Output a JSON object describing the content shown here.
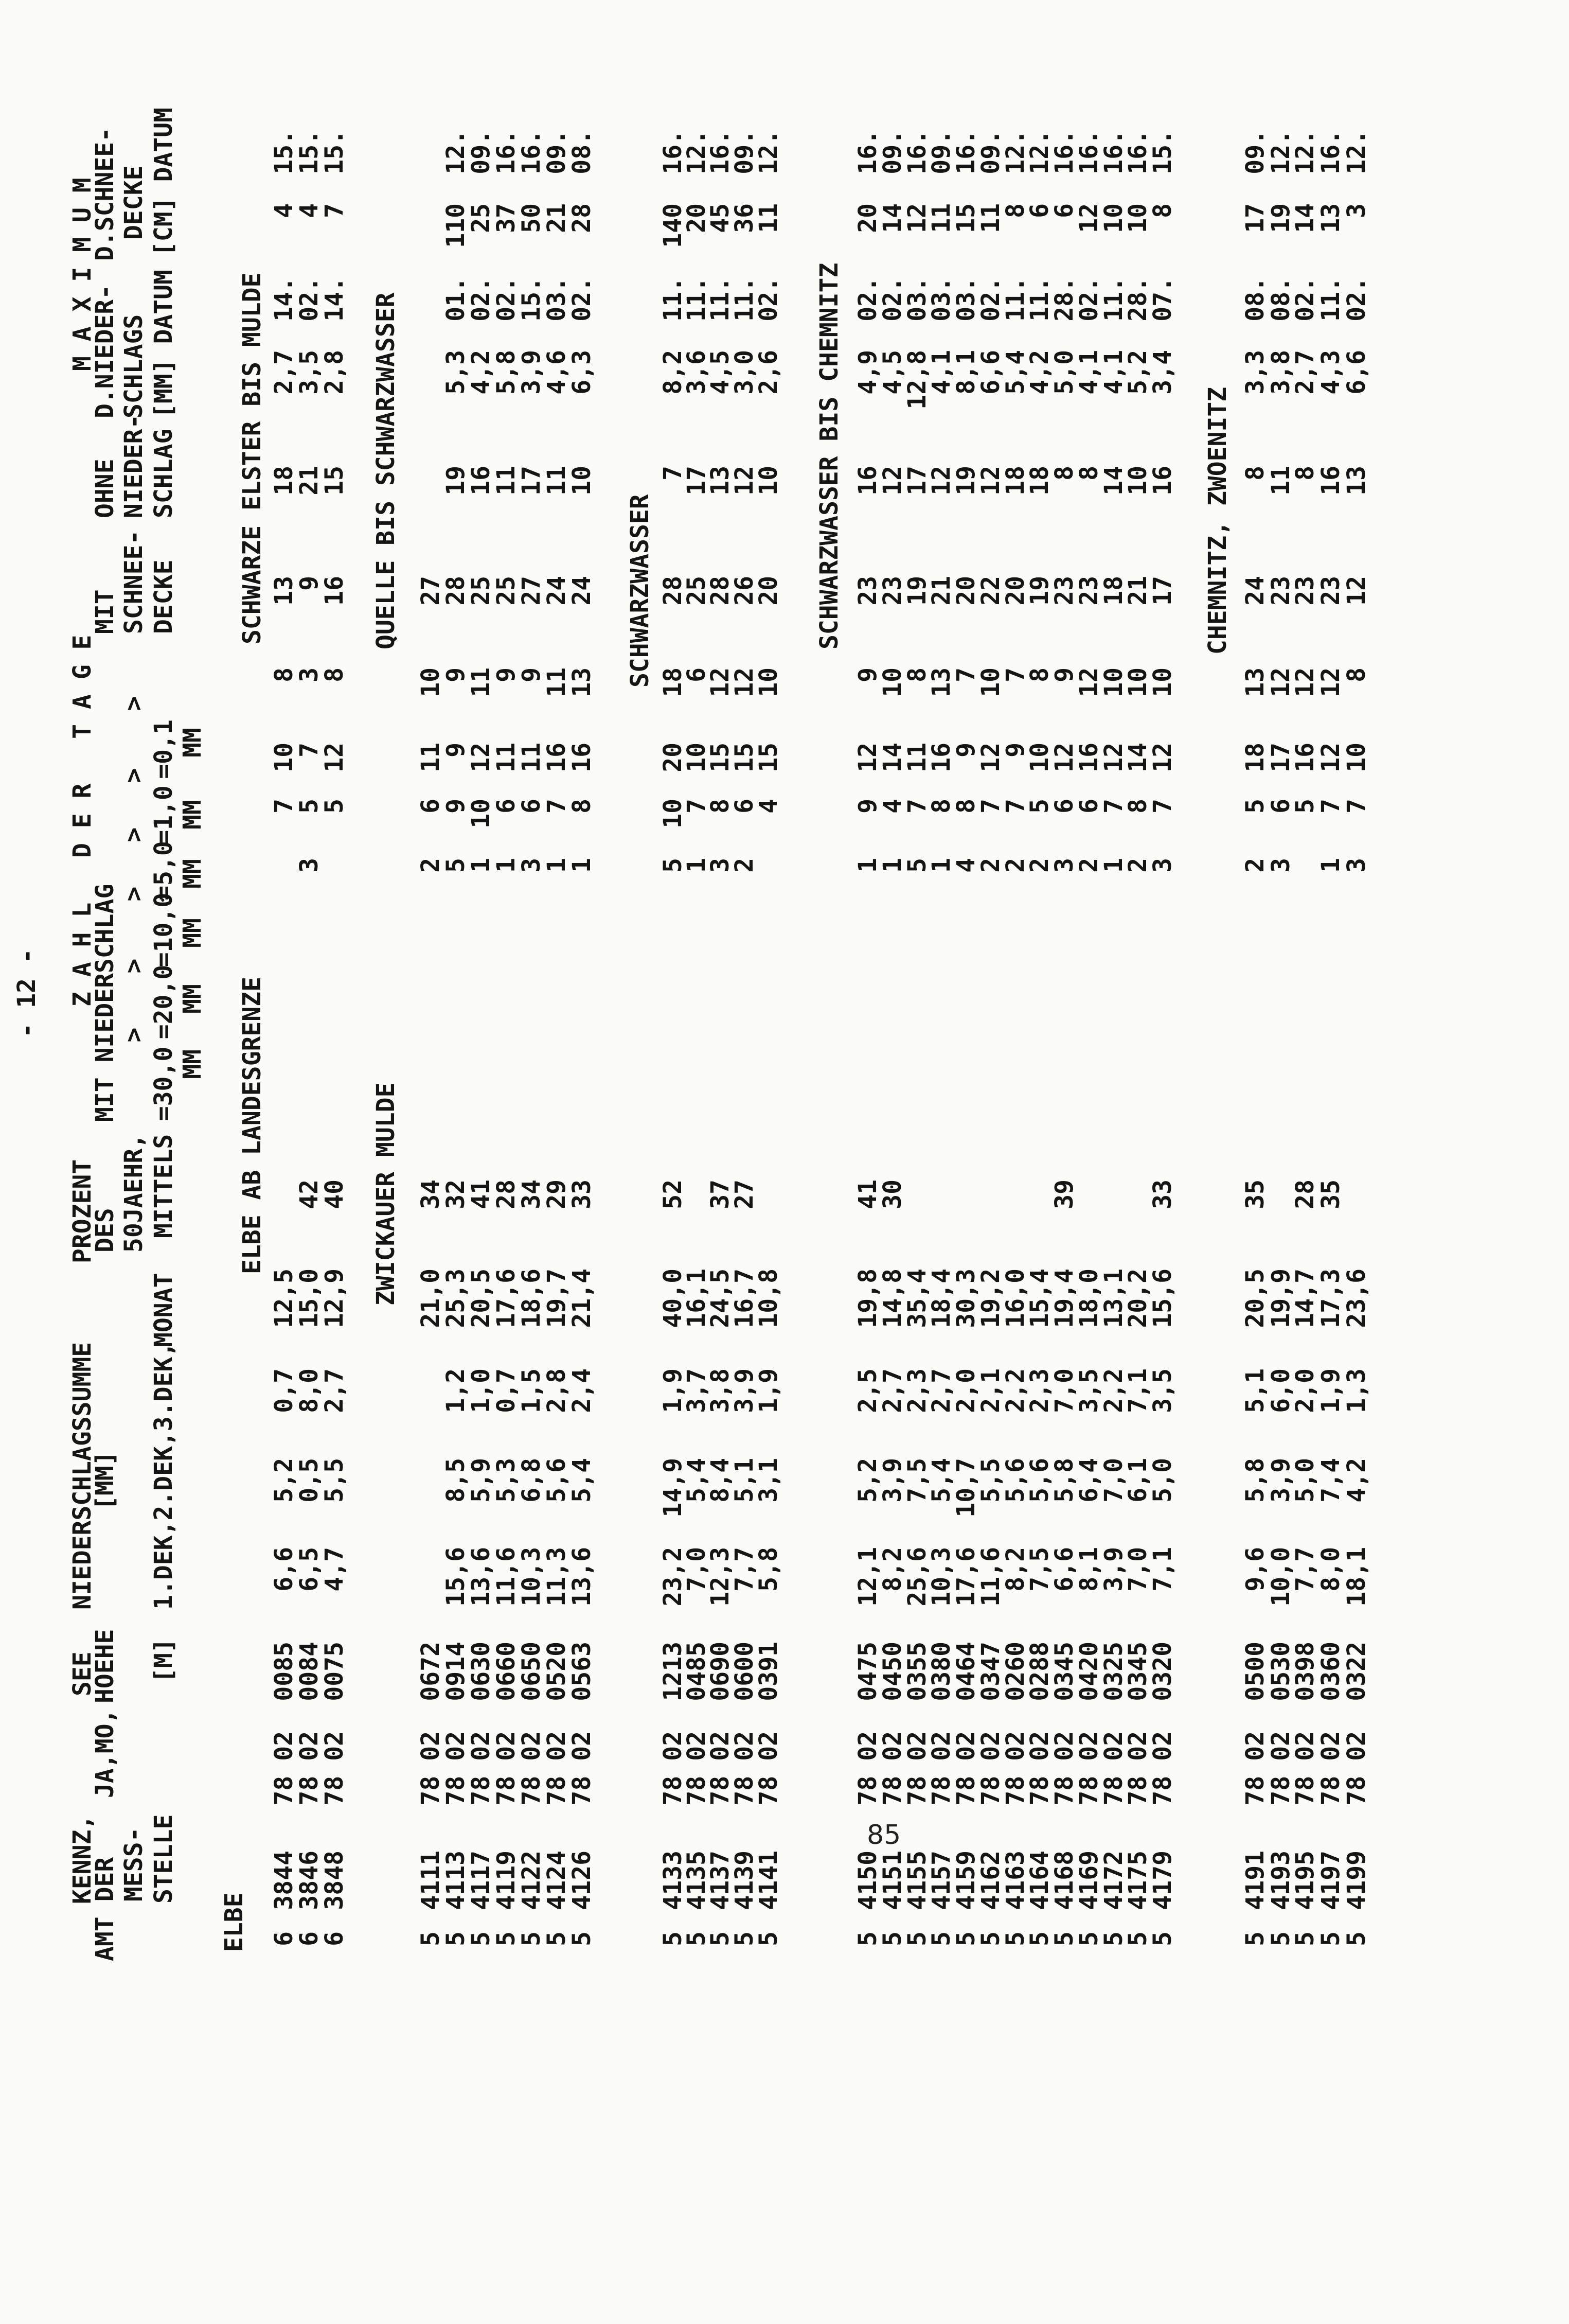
{
  "page_marker": "- 12 -",
  "page_number": "85",
  "header": {
    "kennz": "KENNZ,",
    "amt_der": "AMT DER",
    "mess": "MESS-",
    "stelle": "STELLE",
    "jamo": "JA,MO,",
    "see": "SEE",
    "hoehe": "HOEHE",
    "hoehe_unit": "[M]",
    "ns_title": "NIEDERSCHLAGSSUMME",
    "ns_unit": "[MM]",
    "dekaden": "1.DEK,2.DEK,3.DEK,",
    "monat": "MONAT",
    "prozent": "PROZENT",
    "des": "DES",
    "jaehr": "50JAEHR,",
    "mittels": "MITTELS",
    "zahl_der_tage": "Z A H L   D E R   T A G E",
    "mit_niederschlag": "MIT NIEDERSCHLAG",
    "thresholds": [
      {
        "sym": ">",
        "val": "=30,0",
        "unit": "MM"
      },
      {
        "sym": ">",
        "val": "=20,0",
        "unit": "MM"
      },
      {
        "sym": ">",
        "val": "=10,0",
        "unit": "MM"
      },
      {
        "sym": ">",
        "val": "=5,0",
        "unit": "MM"
      },
      {
        "sym": ">",
        "val": "=1,0",
        "unit": "MM"
      },
      {
        "sym": ">",
        "val": "=0,1",
        "unit": "MM"
      }
    ],
    "mit": "MIT",
    "schnee": "SCHNEE-",
    "decke": "DECKE",
    "ohne": "OHNE",
    "nieder": "NIEDER-",
    "schlag": "SCHLAG",
    "maximum": "M A X I M U M",
    "d_nieder": "D.NIEDER-",
    "schlags": "SCHLAGS",
    "mm_datum": "[MM] DATUM",
    "d_schnee": "D.SCHNEE-",
    "decke2": "DECKE",
    "cm_datum": "[CM] DATUM"
  },
  "groups": [
    {
      "title": "ELBE",
      "heading_left": "ELBE AB LANDESGRENZE",
      "heading_right": "SCHWARZE ELSTER BIS MULDE",
      "rows": [
        [
          "6",
          "3844",
          "78 02",
          "0085",
          "6,6",
          "5,2",
          "0,7",
          "12,5",
          "",
          "",
          "7",
          "10",
          "8",
          "13",
          "18",
          "2,7",
          "14.",
          "4",
          "15."
        ],
        [
          "6",
          "3846",
          "78 02",
          "0084",
          "6,5",
          "0,5",
          "8,0",
          "15,0",
          "42",
          "3",
          "5",
          "7",
          "3",
          "9",
          "21",
          "3,5",
          "02.",
          "4",
          "15."
        ],
        [
          "6",
          "3848",
          "78 02",
          "0075",
          "4,7",
          "5,5",
          "2,7",
          "12,9",
          "40",
          "",
          "5",
          "12",
          "8",
          "16",
          "15",
          "2,8",
          "14.",
          "7",
          "15."
        ]
      ]
    },
    {
      "title": "",
      "heading_left": "ZWICKAUER MULDE",
      "heading_right": "QUELLE BIS SCHWARZWASSER",
      "rows": [
        [
          "5",
          "4111",
          "78 02",
          "0672",
          "",
          "",
          "",
          "21,0",
          "34",
          "2",
          "6",
          "11",
          "10",
          "27",
          "",
          "",
          "",
          "",
          ""
        ],
        [
          "5",
          "4113",
          "78 02",
          "0914",
          "15,6",
          "8,5",
          "1,2",
          "25,3",
          "32",
          "5",
          "9",
          "9",
          "9",
          "28",
          "19",
          "5,3",
          "01.",
          "110",
          "12."
        ],
        [
          "5",
          "4117",
          "78 02",
          "0630",
          "13,6",
          "5,9",
          "1,0",
          "20,5",
          "41",
          "1",
          "10",
          "12",
          "11",
          "25",
          "16",
          "4,2",
          "02.",
          "25",
          "09."
        ],
        [
          "5",
          "4119",
          "78 02",
          "0660",
          "11,6",
          "5,3",
          "0,7",
          "17,6",
          "28",
          "1",
          "6",
          "11",
          "9",
          "25",
          "11",
          "5,8",
          "02.",
          "37",
          "16."
        ],
        [
          "5",
          "4122",
          "78 02",
          "0650",
          "10,3",
          "6,8",
          "1,5",
          "18,6",
          "34",
          "3",
          "6",
          "11",
          "9",
          "27",
          "17",
          "3,9",
          "15.",
          "50",
          "16."
        ],
        [
          "5",
          "4124",
          "78 02",
          "0520",
          "11,3",
          "5,6",
          "2,8",
          "19,7",
          "29",
          "1",
          "7",
          "16",
          "11",
          "24",
          "11",
          "4,6",
          "03.",
          "21",
          "09."
        ],
        [
          "5",
          "4126",
          "78 02",
          "0563",
          "13,6",
          "5,4",
          "2,4",
          "21,4",
          "33",
          "1",
          "8",
          "16",
          "13",
          "24",
          "10",
          "6,3",
          "02.",
          "28",
          "08."
        ]
      ]
    },
    {
      "title": "",
      "heading_left": "",
      "heading_right": "SCHWARZWASSER",
      "rows": [
        [
          "5",
          "4133",
          "78 02",
          "1213",
          "23,2",
          "14,9",
          "1,9",
          "40,0",
          "52",
          "5",
          "10",
          "20",
          "18",
          "28",
          "7",
          "8,2",
          "11.",
          "140",
          "16."
        ],
        [
          "5",
          "4135",
          "78 02",
          "0485",
          "7,0",
          "5,4",
          "3,7",
          "16,1",
          "",
          "1",
          "7",
          "10",
          "6",
          "25",
          "17",
          "3,6",
          "11.",
          "20",
          "12."
        ],
        [
          "5",
          "4137",
          "78 02",
          "0690",
          "12,3",
          "8,4",
          "3,8",
          "24,5",
          "37",
          "3",
          "8",
          "15",
          "12",
          "28",
          "13",
          "4,5",
          "11.",
          "45",
          "16."
        ],
        [
          "5",
          "4139",
          "78 02",
          "0600",
          "7,7",
          "5,1",
          "3,9",
          "16,7",
          "27",
          "2",
          "6",
          "15",
          "12",
          "26",
          "12",
          "3,0",
          "11.",
          "36",
          "09."
        ],
        [
          "5",
          "4141",
          "78 02",
          "0391",
          "5,8",
          "3,1",
          "1,9",
          "10,8",
          "",
          "",
          "4",
          "15",
          "10",
          "20",
          "10",
          "2,6",
          "02.",
          "11",
          "12."
        ]
      ]
    },
    {
      "title": "",
      "heading_left": "",
      "heading_right": "SCHWARZWASSER BIS CHEMNITZ",
      "rows": [
        [
          "5",
          "4150",
          "78 02",
          "0475",
          "12,1",
          "5,2",
          "2,5",
          "19,8",
          "41",
          "1",
          "9",
          "12",
          "9",
          "23",
          "16",
          "4,9",
          "02.",
          "20",
          "16."
        ],
        [
          "5",
          "4151",
          "78 02",
          "0450",
          "8,2",
          "3,9",
          "2,7",
          "14,8",
          "30",
          "1",
          "4",
          "14",
          "10",
          "23",
          "12",
          "4,5",
          "02.",
          "14",
          "09."
        ],
        [
          "5",
          "4155",
          "78 02",
          "0355",
          "25,6",
          "7,5",
          "2,3",
          "35,4",
          "",
          "5",
          "7",
          "11",
          "8",
          "19",
          "17",
          "12,8",
          "03.",
          "12",
          "16."
        ],
        [
          "5",
          "4157",
          "78 02",
          "0380",
          "10,3",
          "5,4",
          "2,7",
          "18,4",
          "",
          "1",
          "8",
          "16",
          "13",
          "21",
          "12",
          "4,1",
          "03.",
          "11",
          "09."
        ],
        [
          "5",
          "4159",
          "78 02",
          "0464",
          "17,6",
          "10,7",
          "2,0",
          "30,3",
          "",
          "4",
          "8",
          "9",
          "7",
          "20",
          "19",
          "8,1",
          "03.",
          "15",
          "16."
        ],
        [
          "5",
          "4162",
          "78 02",
          "0347",
          "11,6",
          "5,5",
          "2,1",
          "19,2",
          "",
          "2",
          "7",
          "12",
          "10",
          "22",
          "12",
          "6,6",
          "02.",
          "11",
          "09."
        ],
        [
          "5",
          "4163",
          "78 02",
          "0260",
          "8,2",
          "5,6",
          "2,2",
          "16,0",
          "",
          "2",
          "7",
          "9",
          "7",
          "20",
          "18",
          "5,4",
          "11.",
          "8",
          "12."
        ],
        [
          "5",
          "4164",
          "78 02",
          "0288",
          "7,5",
          "5,6",
          "2,3",
          "15,4",
          "",
          "2",
          "5",
          "10",
          "8",
          "19",
          "18",
          "4,2",
          "11.",
          "6",
          "12."
        ],
        [
          "5",
          "4168",
          "78 02",
          "0345",
          "6,6",
          "5,8",
          "7,0",
          "19,4",
          "39",
          "3",
          "6",
          "12",
          "9",
          "23",
          "8",
          "5,0",
          "28.",
          "6",
          "16."
        ],
        [
          "5",
          "4169",
          "78 02",
          "0420",
          "8,1",
          "6,4",
          "3,5",
          "18,0",
          "",
          "2",
          "6",
          "16",
          "12",
          "23",
          "8",
          "4,1",
          "02.",
          "12",
          "16."
        ],
        [
          "5",
          "4172",
          "78 02",
          "0325",
          "3,9",
          "7,0",
          "2,2",
          "13,1",
          "",
          "1",
          "7",
          "12",
          "10",
          "18",
          "14",
          "4,1",
          "11.",
          "10",
          "16."
        ],
        [
          "5",
          "4175",
          "78 02",
          "0345",
          "7,0",
          "6,1",
          "7,1",
          "20,2",
          "",
          "2",
          "8",
          "14",
          "10",
          "21",
          "10",
          "5,2",
          "28.",
          "10",
          "16."
        ],
        [
          "5",
          "4179",
          "78 02",
          "0320",
          "7,1",
          "5,0",
          "3,5",
          "15,6",
          "33",
          "3",
          "7",
          "12",
          "10",
          "17",
          "16",
          "3,4",
          "07.",
          "8",
          "15."
        ]
      ]
    },
    {
      "title": "",
      "heading_left": "",
      "heading_right": "CHEMNITZ, ZWOENITZ",
      "rows": [
        [
          "5",
          "4191",
          "78 02",
          "0500",
          "9,6",
          "5,8",
          "5,1",
          "20,5",
          "35",
          "2",
          "5",
          "18",
          "13",
          "24",
          "8",
          "3,3",
          "08.",
          "17",
          "09."
        ],
        [
          "5",
          "4193",
          "78 02",
          "0530",
          "10,0",
          "3,9",
          "6,0",
          "19,9",
          "",
          "3",
          "6",
          "17",
          "12",
          "23",
          "11",
          "3,8",
          "08.",
          "19",
          "12."
        ],
        [
          "5",
          "4195",
          "78 02",
          "0398",
          "7,7",
          "5,0",
          "2,0",
          "14,7",
          "28",
          "",
          "5",
          "16",
          "12",
          "23",
          "8",
          "2,7",
          "02.",
          "14",
          "12."
        ],
        [
          "5",
          "4197",
          "78 02",
          "0360",
          "8,0",
          "7,4",
          "1,9",
          "17,3",
          "35",
          "1",
          "7",
          "12",
          "12",
          "23",
          "16",
          "4,3",
          "11.",
          "13",
          "16."
        ],
        [
          "5",
          "4199",
          "78 02",
          "0322",
          "18,1",
          "4,2",
          "1,3",
          "23,6",
          "",
          "3",
          "7",
          "10",
          "8",
          "12",
          "13",
          "6,6",
          "02.",
          "3",
          "12."
        ]
      ]
    }
  ]
}
